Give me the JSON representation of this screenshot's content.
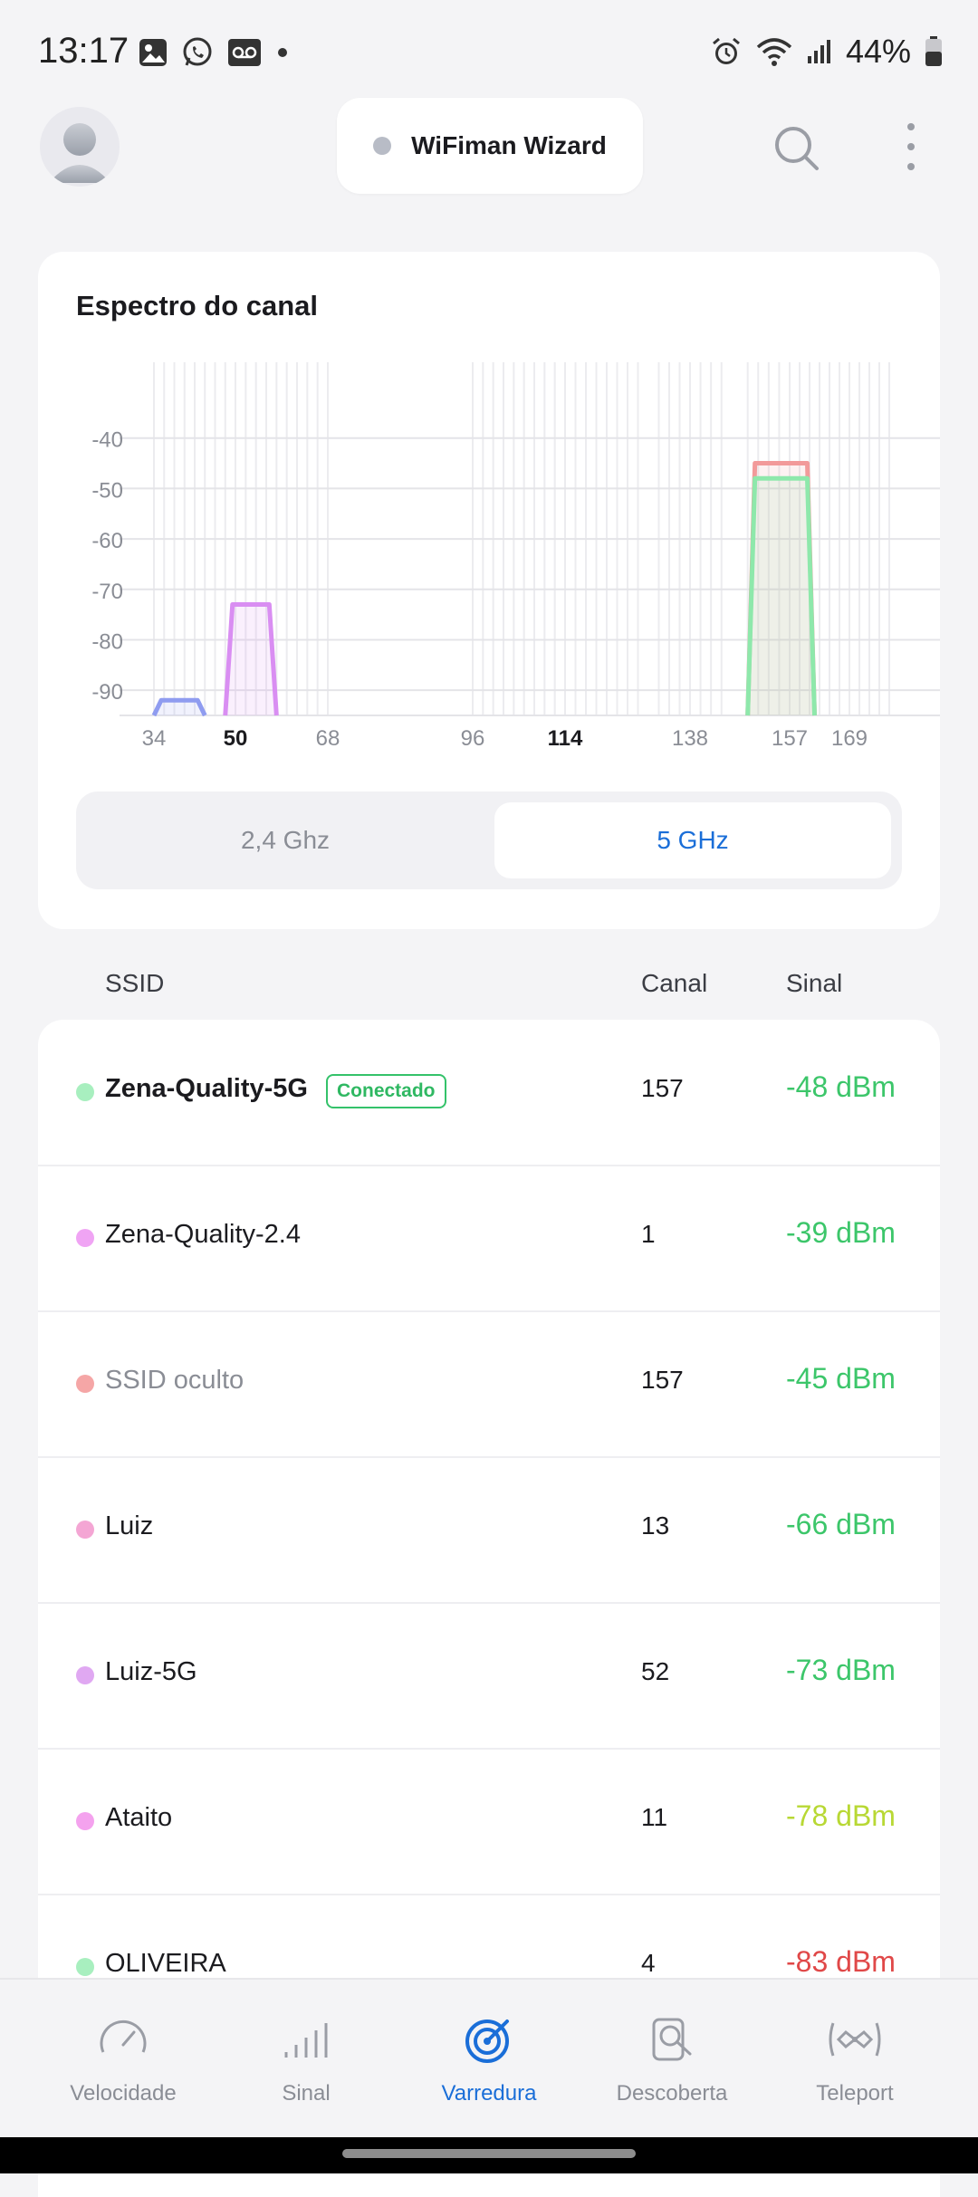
{
  "status_bar": {
    "time": "13:17",
    "battery": "44%",
    "left_icons": [
      "gallery-icon",
      "whatsapp-icon",
      "voicemail-icon",
      "dot-icon"
    ],
    "right_icons": [
      "alarm-icon",
      "wifi-icon",
      "cell-signal-icon",
      "battery-icon"
    ]
  },
  "header": {
    "wizard_label": "WiFiman Wizard",
    "icons": [
      "avatar",
      "search-icon",
      "more-vert-icon"
    ]
  },
  "spectrum": {
    "title": "Espectro do canal",
    "toggle": {
      "option_24": "2,4 Ghz",
      "option_5": "5 GHz",
      "selected": "5 GHz"
    }
  },
  "chart_data": {
    "type": "area",
    "title": "Espectro do canal",
    "y_ticks": [
      "-40",
      "-50",
      "-60",
      "-70",
      "-80",
      "-90"
    ],
    "ylim": [
      -95,
      -30
    ],
    "x_ticks": [
      {
        "label": "34",
        "bold": false
      },
      {
        "label": "50",
        "bold": true
      },
      {
        "label": "68",
        "bold": false
      },
      {
        "label": "96",
        "bold": false
      },
      {
        "label": "114",
        "bold": true
      },
      {
        "label": "138",
        "bold": false
      },
      {
        "label": "157",
        "bold": false
      },
      {
        "label": "169",
        "bold": false
      }
    ],
    "series": [
      {
        "channel_from": 34,
        "channel_to": 44,
        "signal_dbm": -92,
        "color": "#8f9cf0"
      },
      {
        "channel_from": 48,
        "channel_to": 58,
        "signal_dbm": -73,
        "color": "#d98ef2"
      },
      {
        "channel_from": 149,
        "channel_to": 162,
        "signal_dbm": -45,
        "color": "#f29a9a"
      },
      {
        "channel_from": 149,
        "channel_to": 162,
        "signal_dbm": -48,
        "color": "#8ee8ab"
      }
    ],
    "grid": true
  },
  "table": {
    "col_ssid": "SSID",
    "col_canal": "Canal",
    "col_sinal": "Sinal",
    "rows": [
      {
        "ssid": "Zena-Quality-5G",
        "badge": "Conectado",
        "canal": "157",
        "signal": "-48 dBm",
        "dot": "#a8efbf",
        "signal_color": "#3cc66a",
        "style": "bold"
      },
      {
        "ssid": "Zena-Quality-2.4",
        "badge": "",
        "canal": "1",
        "signal": "-39 dBm",
        "dot": "#f0a4f4",
        "signal_color": "#3cc66a",
        "style": "normal"
      },
      {
        "ssid": "SSID oculto",
        "badge": "",
        "canal": "157",
        "signal": "-45 dBm",
        "dot": "#f5a6a6",
        "signal_color": "#3cc66a",
        "style": "muted"
      },
      {
        "ssid": "Luiz",
        "badge": "",
        "canal": "13",
        "signal": "-66 dBm",
        "dot": "#f4a6d4",
        "signal_color": "#3cc66a",
        "style": "normal"
      },
      {
        "ssid": "Luiz-5G",
        "badge": "",
        "canal": "52",
        "signal": "-73 dBm",
        "dot": "#e0a8f2",
        "signal_color": "#3cc66a",
        "style": "normal"
      },
      {
        "ssid": "Ataito",
        "badge": "",
        "canal": "11",
        "signal": "-78 dBm",
        "dot": "#f4a2ee",
        "signal_color": "#b8d834",
        "style": "normal"
      },
      {
        "ssid": "OLIVEIRA",
        "badge": "",
        "canal": "4",
        "signal": "-83 dBm",
        "dot": "#a8efbf",
        "signal_color": "#e04848",
        "style": "normal"
      }
    ]
  },
  "bottom_nav": {
    "items": [
      {
        "label": "Velocidade",
        "icon": "speedometer-icon",
        "active": false
      },
      {
        "label": "Sinal",
        "icon": "signal-bars-icon",
        "active": false
      },
      {
        "label": "Varredura",
        "icon": "radar-scan-icon",
        "active": true
      },
      {
        "label": "Descoberta",
        "icon": "device-discovery-icon",
        "active": false
      },
      {
        "label": "Teleport",
        "icon": "teleport-icon",
        "active": false
      }
    ]
  },
  "colors": {
    "accent": "#1a6ed8",
    "background": "#f4f4f6",
    "card": "#ffffff"
  }
}
